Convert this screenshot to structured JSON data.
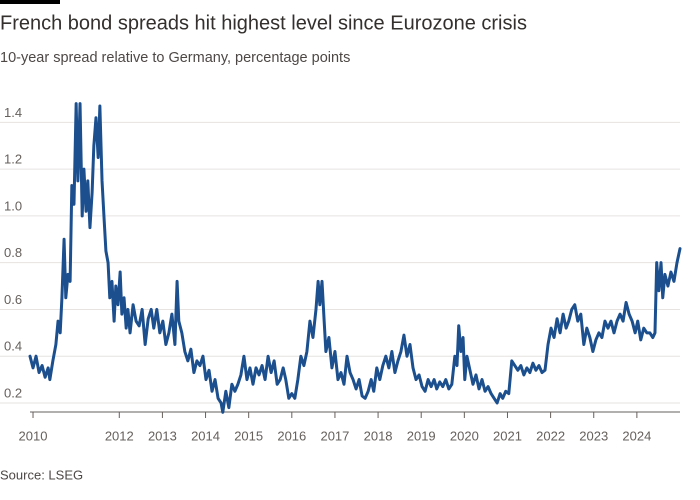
{
  "chart_data": {
    "type": "line",
    "title": "French bond spreads hit highest level since Eurozone crisis",
    "subtitle": "10-year spread relative to Germany, percentage points",
    "source": "Source: LSEG",
    "color": "#1c4f8e",
    "xlim": [
      2009.93,
      2025.0
    ],
    "xticks": [
      2010,
      2012,
      2013,
      2014,
      2015,
      2016,
      2017,
      2018,
      2019,
      2020,
      2021,
      2022,
      2023,
      2024
    ],
    "ylim": [
      0.14,
      1.5
    ],
    "yticks": [
      0.2,
      0.4,
      0.6,
      0.8,
      {
        "value": 1,
        "label": "1.0"
      },
      1.2,
      1.4
    ],
    "grid": true,
    "x": [
      2009.93,
      2010.0,
      2010.07,
      2010.14,
      2010.21,
      2010.28,
      2010.35,
      2010.39,
      2010.46,
      2010.53,
      2010.58,
      2010.63,
      2010.67,
      2010.72,
      2010.76,
      2010.81,
      2010.86,
      2010.9,
      2010.95,
      2011.0,
      2011.04,
      2011.09,
      2011.14,
      2011.18,
      2011.23,
      2011.27,
      2011.32,
      2011.37,
      2011.41,
      2011.46,
      2011.51,
      2011.55,
      2011.6,
      2011.65,
      2011.69,
      2011.74,
      2011.78,
      2011.83,
      2011.88,
      2011.92,
      2011.97,
      2012.02,
      2012.06,
      2012.11,
      2012.16,
      2012.2,
      2012.25,
      2012.32,
      2012.39,
      2012.46,
      2012.53,
      2012.6,
      2012.67,
      2012.74,
      2012.8,
      2012.87,
      2012.94,
      2013.01,
      2013.08,
      2013.15,
      2013.22,
      2013.29,
      2013.34,
      2013.38,
      2013.45,
      2013.52,
      2013.59,
      2013.66,
      2013.73,
      2013.8,
      2013.87,
      2013.94,
      2014.01,
      2014.08,
      2014.15,
      2014.22,
      2014.29,
      2014.36,
      2014.4,
      2014.47,
      2014.54,
      2014.61,
      2014.68,
      2014.75,
      2014.82,
      2014.89,
      2014.96,
      2015.03,
      2015.1,
      2015.17,
      2015.24,
      2015.31,
      2015.38,
      2015.45,
      2015.52,
      2015.59,
      2015.66,
      2015.73,
      2015.8,
      2015.86,
      2015.93,
      2016.0,
      2016.07,
      2016.14,
      2016.21,
      2016.28,
      2016.35,
      2016.42,
      2016.49,
      2016.56,
      2016.61,
      2016.65,
      2016.7,
      2016.75,
      2016.79,
      2016.86,
      2016.93,
      2017.0,
      2017.07,
      2017.14,
      2017.21,
      2017.28,
      2017.35,
      2017.42,
      2017.49,
      2017.56,
      2017.63,
      2017.7,
      2017.77,
      2017.84,
      2017.9,
      2017.97,
      2018.04,
      2018.11,
      2018.18,
      2018.25,
      2018.32,
      2018.39,
      2018.46,
      2018.53,
      2018.6,
      2018.67,
      2018.74,
      2018.81,
      2018.88,
      2018.95,
      2019.02,
      2019.09,
      2019.16,
      2019.23,
      2019.3,
      2019.36,
      2019.43,
      2019.5,
      2019.57,
      2019.64,
      2019.71,
      2019.78,
      2019.83,
      2019.87,
      2019.92,
      2019.97,
      2020.01,
      2020.06,
      2020.13,
      2020.2,
      2020.27,
      2020.34,
      2020.41,
      2020.48,
      2020.55,
      2020.62,
      2020.69,
      2020.76,
      2020.83,
      2020.89,
      2020.96,
      2021.03,
      2021.1,
      2021.17,
      2021.24,
      2021.31,
      2021.38,
      2021.45,
      2021.52,
      2021.59,
      2021.66,
      2021.73,
      2021.8,
      2021.87,
      2021.94,
      2022.01,
      2022.08,
      2022.15,
      2022.22,
      2022.29,
      2022.36,
      2022.42,
      2022.49,
      2022.56,
      2022.63,
      2022.7,
      2022.77,
      2022.84,
      2022.91,
      2022.98,
      2023.05,
      2023.12,
      2023.19,
      2023.26,
      2023.33,
      2023.4,
      2023.47,
      2023.54,
      2023.61,
      2023.68,
      2023.75,
      2023.82,
      2023.89,
      2023.96,
      2024.02,
      2024.09,
      2024.16,
      2024.23,
      2024.3,
      2024.37,
      2024.42,
      2024.46,
      2024.51,
      2024.56,
      2024.6,
      2024.65,
      2024.72,
      2024.79,
      2024.86,
      2024.93,
      2025.0
    ],
    "values": [
      0.4,
      0.35,
      0.4,
      0.33,
      0.36,
      0.31,
      0.35,
      0.3,
      0.38,
      0.45,
      0.55,
      0.5,
      0.65,
      0.9,
      0.65,
      0.75,
      0.72,
      1.13,
      1.05,
      1.48,
      1.15,
      1.48,
      1.0,
      1.2,
      1.02,
      1.15,
      0.95,
      1.1,
      1.3,
      1.42,
      1.25,
      1.47,
      1.15,
      0.98,
      0.85,
      0.8,
      0.65,
      0.72,
      0.55,
      0.7,
      0.62,
      0.76,
      0.58,
      0.65,
      0.52,
      0.6,
      0.5,
      0.62,
      0.55,
      0.53,
      0.6,
      0.45,
      0.56,
      0.6,
      0.52,
      0.6,
      0.5,
      0.55,
      0.45,
      0.5,
      0.58,
      0.45,
      0.72,
      0.55,
      0.5,
      0.42,
      0.38,
      0.43,
      0.33,
      0.38,
      0.36,
      0.4,
      0.3,
      0.34,
      0.25,
      0.3,
      0.22,
      0.2,
      0.16,
      0.25,
      0.18,
      0.28,
      0.25,
      0.28,
      0.32,
      0.4,
      0.3,
      0.35,
      0.28,
      0.35,
      0.32,
      0.36,
      0.3,
      0.4,
      0.33,
      0.38,
      0.28,
      0.3,
      0.35,
      0.3,
      0.22,
      0.24,
      0.22,
      0.3,
      0.4,
      0.36,
      0.42,
      0.55,
      0.48,
      0.6,
      0.72,
      0.62,
      0.72,
      0.55,
      0.42,
      0.48,
      0.35,
      0.42,
      0.3,
      0.33,
      0.28,
      0.4,
      0.33,
      0.3,
      0.26,
      0.3,
      0.23,
      0.22,
      0.25,
      0.3,
      0.25,
      0.35,
      0.3,
      0.36,
      0.4,
      0.35,
      0.42,
      0.33,
      0.38,
      0.42,
      0.49,
      0.4,
      0.45,
      0.35,
      0.3,
      0.32,
      0.27,
      0.25,
      0.3,
      0.27,
      0.3,
      0.26,
      0.29,
      0.27,
      0.3,
      0.26,
      0.28,
      0.4,
      0.36,
      0.53,
      0.42,
      0.48,
      0.3,
      0.4,
      0.34,
      0.28,
      0.32,
      0.26,
      0.3,
      0.25,
      0.27,
      0.24,
      0.22,
      0.2,
      0.24,
      0.22,
      0.25,
      0.24,
      0.38,
      0.36,
      0.34,
      0.36,
      0.32,
      0.35,
      0.33,
      0.37,
      0.34,
      0.36,
      0.33,
      0.34,
      0.45,
      0.52,
      0.48,
      0.56,
      0.5,
      0.58,
      0.52,
      0.55,
      0.6,
      0.62,
      0.55,
      0.58,
      0.45,
      0.52,
      0.48,
      0.42,
      0.47,
      0.5,
      0.48,
      0.55,
      0.52,
      0.55,
      0.5,
      0.55,
      0.58,
      0.55,
      0.63,
      0.58,
      0.55,
      0.5,
      0.55,
      0.47,
      0.52,
      0.5,
      0.5,
      0.48,
      0.5,
      0.8,
      0.68,
      0.8,
      0.65,
      0.75,
      0.7,
      0.76,
      0.72,
      0.8,
      0.86
    ]
  }
}
